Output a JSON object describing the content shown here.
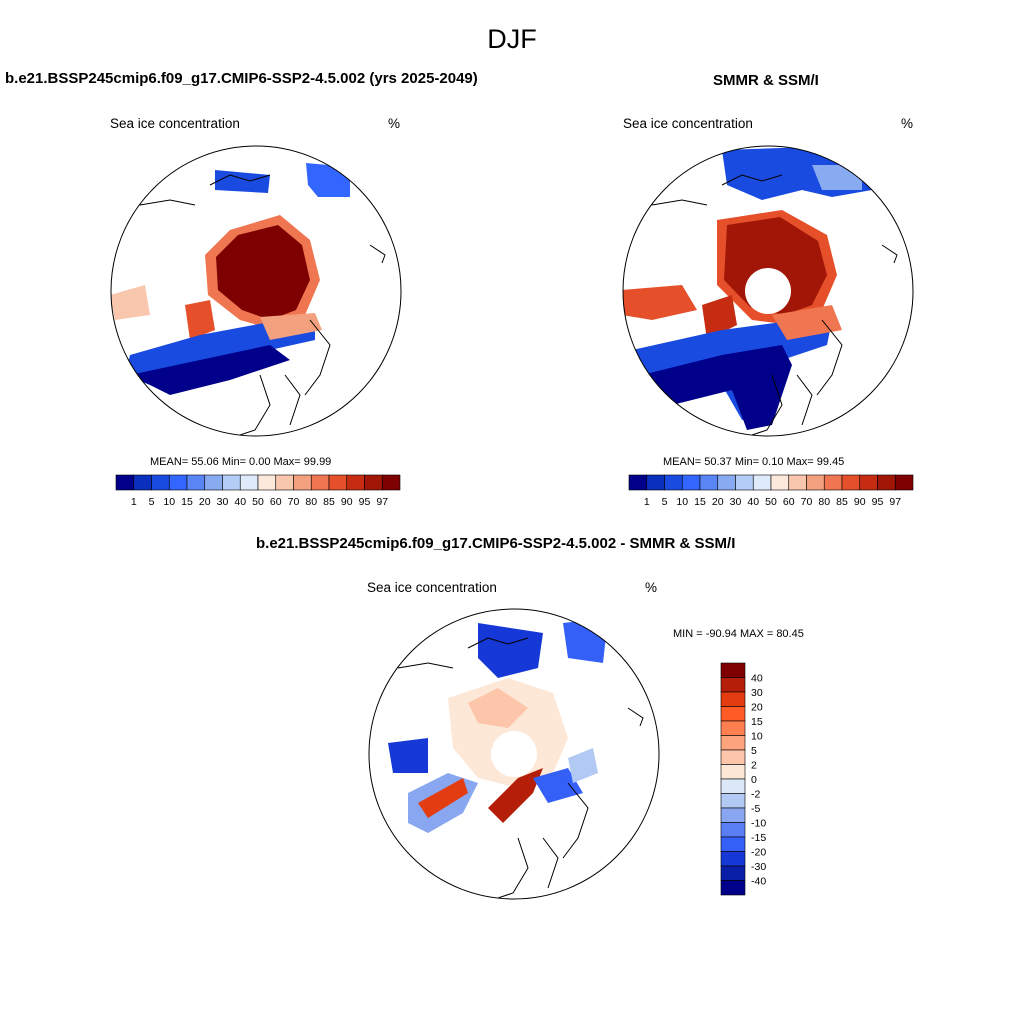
{
  "page": {
    "title": "DJF"
  },
  "panels": {
    "model": {
      "header": "b.e21.BSSP245cmip6.f09_g17.CMIP6-SSP2-4.5.002 (yrs 2025-2049)",
      "subtitle": "Sea ice concentration",
      "units": "%",
      "stats": "MEAN=  55.06  Min=   0.00  Max=  99.99"
    },
    "obs": {
      "header": "SMMR & SSM/I",
      "subtitle": "Sea ice concentration",
      "units": "%",
      "stats": "MEAN=  50.37  Min=   0.10  Max=  99.45"
    },
    "diff": {
      "header": "b.e21.BSSP245cmip6.f09_g17.CMIP6-SSP2-4.5.002 - SMMR & SSM/I",
      "subtitle": "Sea ice concentration",
      "units": "%",
      "minmax": "MIN = -90.94 MAX =  80.45"
    }
  },
  "colorbars": {
    "concentration": {
      "labels": [
        "1",
        "5",
        "10",
        "15",
        "20",
        "30",
        "40",
        "50",
        "60",
        "70",
        "80",
        "85",
        "90",
        "95",
        "97"
      ],
      "colors": [
        "#00008b",
        "#0a2ebd",
        "#1a4be0",
        "#3366ff",
        "#5a86f5",
        "#88aaf0",
        "#b4cdf6",
        "#dfebfb",
        "#fde9dc",
        "#f9c6ae",
        "#f3a07f",
        "#ef7650",
        "#e5502a",
        "#c52c12",
        "#a11606",
        "#7f0000"
      ]
    },
    "difference": {
      "labels": [
        "40",
        "30",
        "20",
        "15",
        "10",
        "5",
        "2",
        "0",
        "-2",
        "-5",
        "-10",
        "-15",
        "-20",
        "-30",
        "-40"
      ],
      "colors": [
        "#7f0000",
        "#b51f0a",
        "#e23c10",
        "#fe5b26",
        "#fe8050",
        "#fda47c",
        "#fdc6aa",
        "#fde8d8",
        "#dbe8f8",
        "#b1c9f3",
        "#88a7f0",
        "#5a7ff5",
        "#3460f8",
        "#1538d6",
        "#0a1fa8",
        "#00008b"
      ]
    }
  }
}
